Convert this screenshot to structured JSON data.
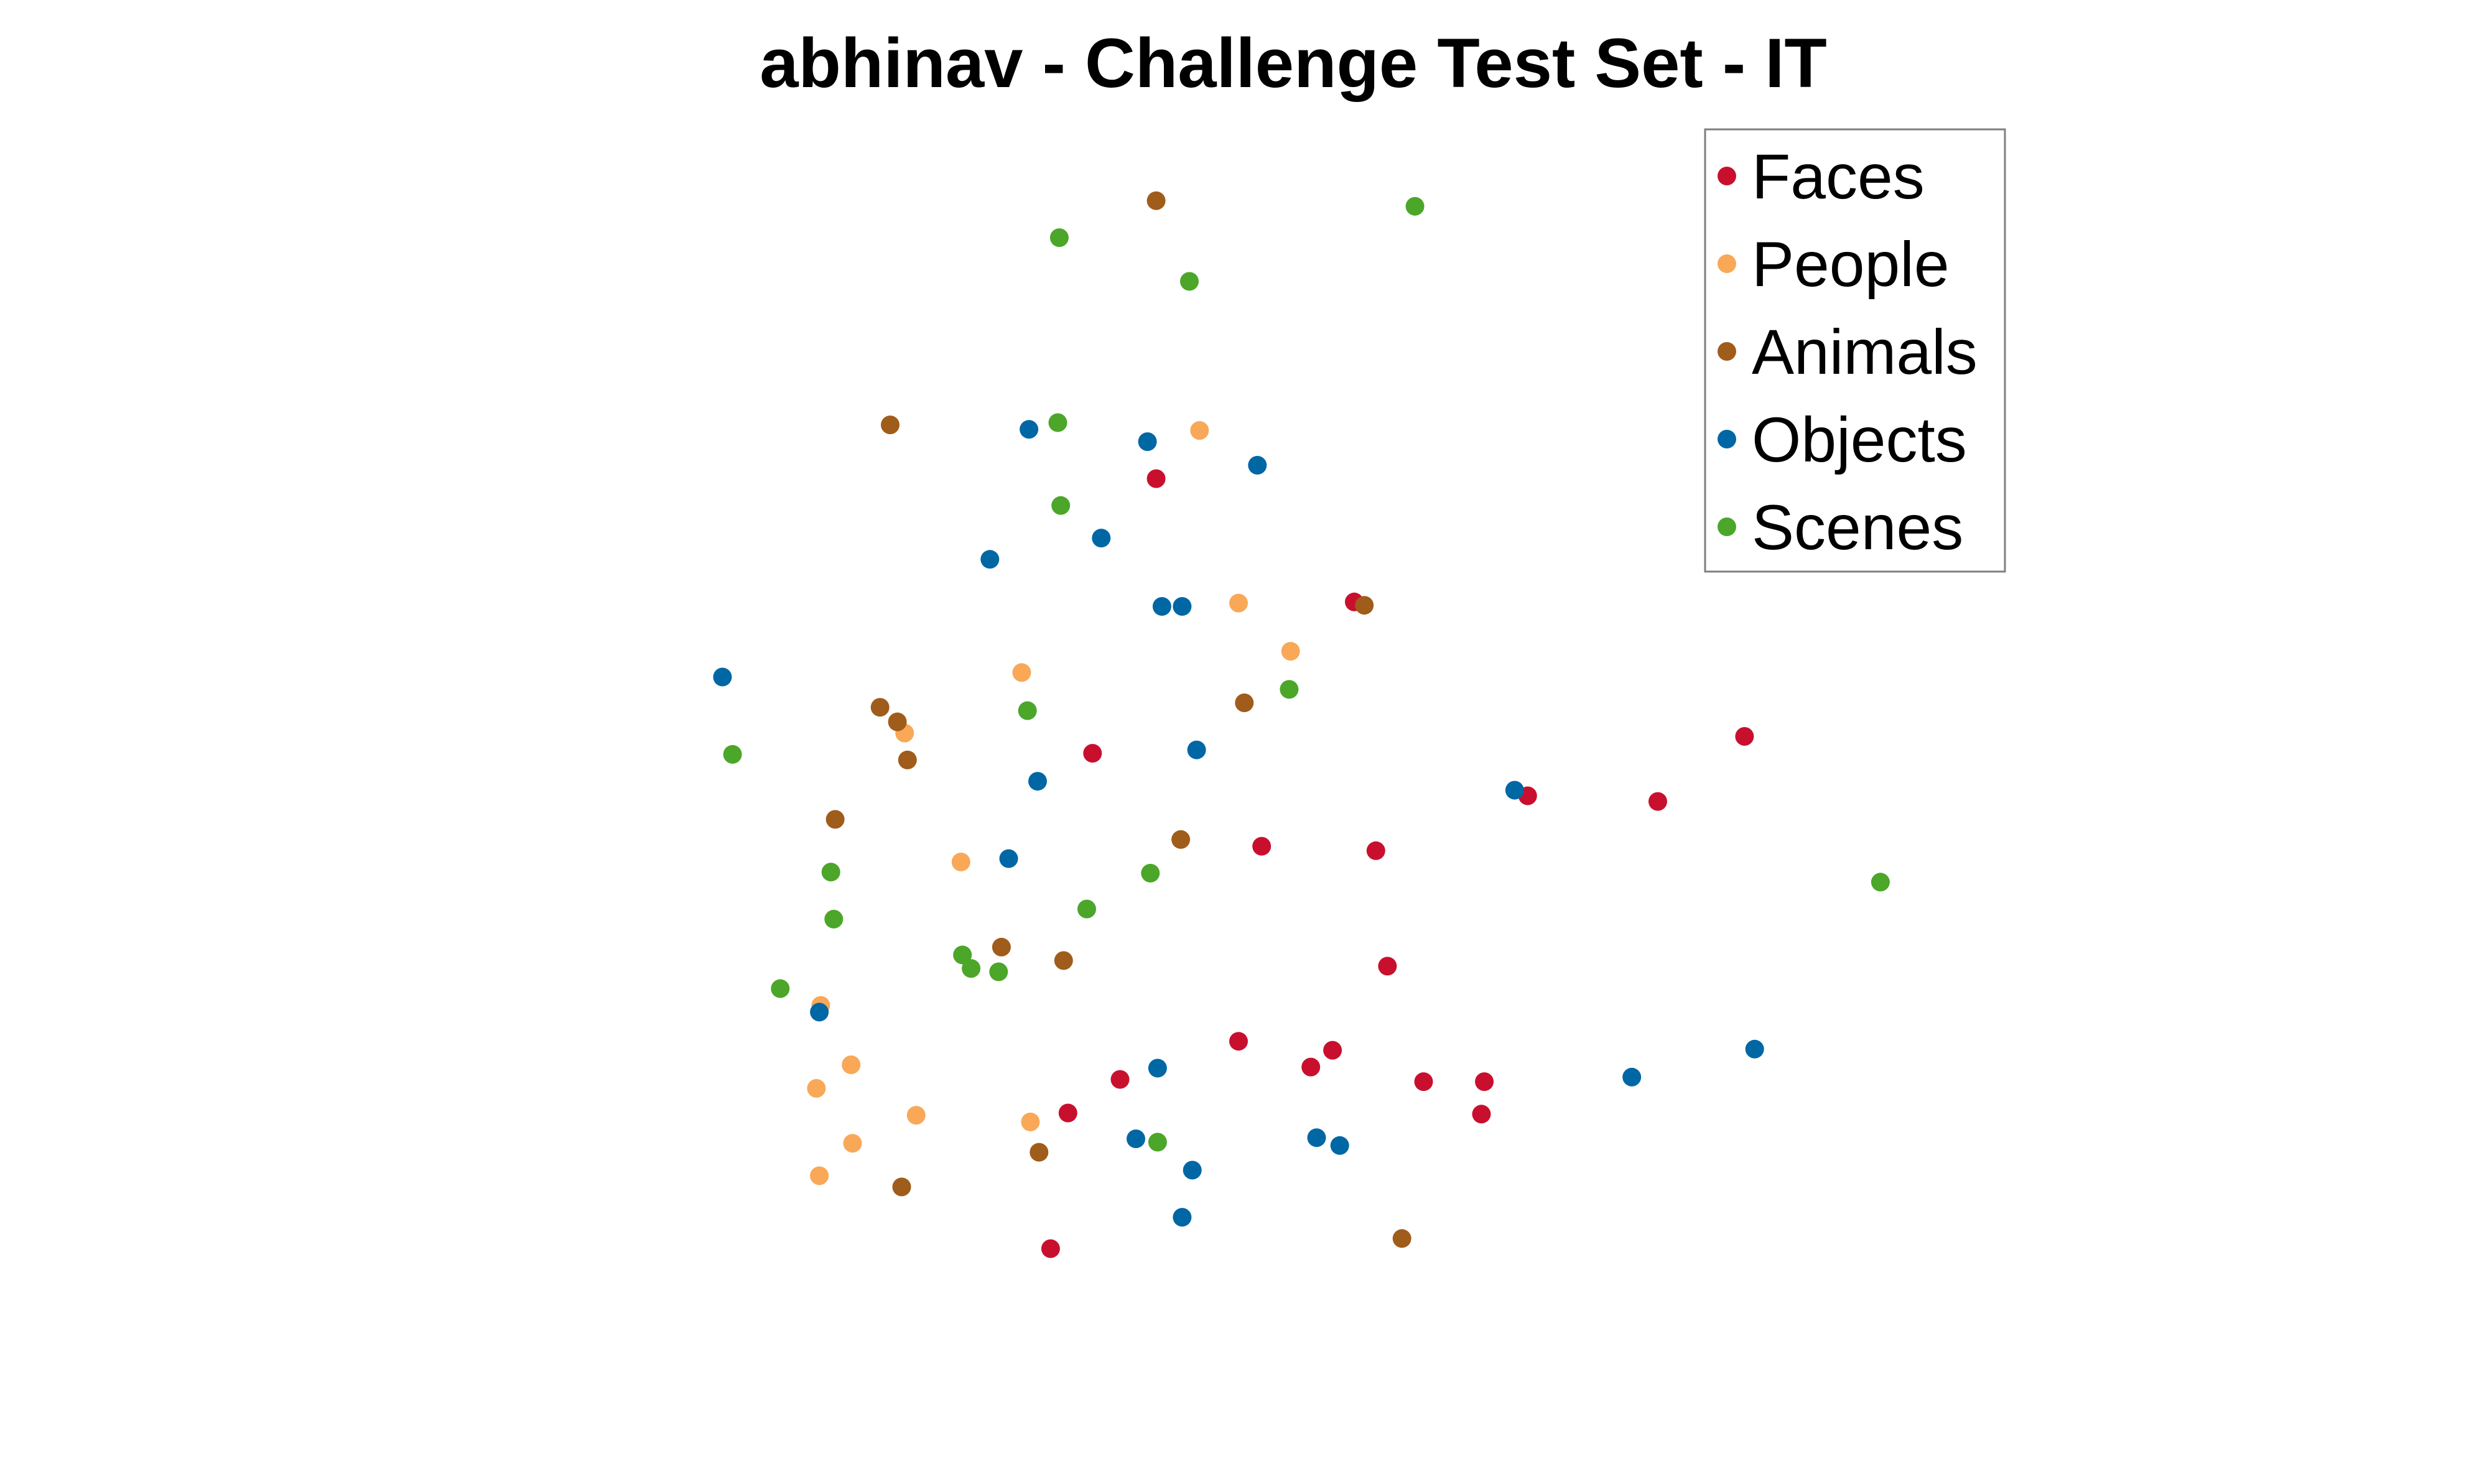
{
  "chart_data": {
    "type": "scatter",
    "title": "abhinav - Challenge Test Set - IT",
    "xlabel": "",
    "ylabel": "",
    "axes_visible": false,
    "grid": false,
    "xlim": [
      0,
      100
    ],
    "ylim": [
      0,
      100
    ],
    "legend_position": "top-right",
    "series": [
      {
        "name": "Faces",
        "color": "#c8102e",
        "points": [
          [
            40.3,
            71.0
          ],
          [
            54.0,
            60.0
          ],
          [
            35.9,
            46.5
          ],
          [
            47.6,
            38.2
          ],
          [
            55.5,
            37.8
          ],
          [
            75.0,
            42.2
          ],
          [
            81.0,
            48.0
          ],
          [
            66.0,
            42.7
          ],
          [
            56.3,
            27.5
          ],
          [
            46.0,
            20.8
          ],
          [
            52.5,
            20.0
          ],
          [
            51.0,
            18.5
          ],
          [
            37.8,
            17.4
          ],
          [
            58.8,
            17.2
          ],
          [
            63.0,
            17.2
          ],
          [
            34.2,
            14.4
          ],
          [
            62.8,
            14.3
          ],
          [
            33.0,
            2.3
          ]
        ]
      },
      {
        "name": "People",
        "color": "#f9a857",
        "points": [
          [
            43.3,
            75.3
          ],
          [
            46.0,
            59.9
          ],
          [
            49.6,
            55.6
          ],
          [
            31.0,
            53.7
          ],
          [
            22.9,
            48.3
          ],
          [
            26.8,
            36.8
          ],
          [
            17.1,
            24.0
          ],
          [
            19.2,
            18.7
          ],
          [
            16.8,
            16.6
          ],
          [
            23.7,
            14.2
          ],
          [
            31.6,
            13.6
          ],
          [
            19.3,
            11.7
          ],
          [
            17.0,
            8.8
          ]
        ]
      },
      {
        "name": "Animals",
        "color": "#a05c1b",
        "points": [
          [
            40.3,
            95.8
          ],
          [
            21.9,
            75.8
          ],
          [
            54.7,
            59.7
          ],
          [
            46.4,
            51.0
          ],
          [
            21.2,
            50.6
          ],
          [
            22.4,
            49.3
          ],
          [
            23.1,
            45.9
          ],
          [
            18.1,
            40.6
          ],
          [
            42.0,
            38.8
          ],
          [
            29.6,
            29.2
          ],
          [
            33.9,
            28.0
          ],
          [
            32.2,
            10.9
          ],
          [
            22.7,
            7.8
          ],
          [
            57.3,
            3.2
          ]
        ]
      },
      {
        "name": "Objects",
        "color": "#0067a5",
        "points": [
          [
            31.5,
            75.4
          ],
          [
            39.7,
            74.3
          ],
          [
            47.3,
            72.2
          ],
          [
            36.5,
            65.7
          ],
          [
            28.8,
            63.8
          ],
          [
            40.7,
            59.6
          ],
          [
            42.1,
            59.6
          ],
          [
            10.3,
            53.3
          ],
          [
            43.1,
            46.8
          ],
          [
            32.1,
            44.0
          ],
          [
            65.1,
            43.2
          ],
          [
            30.1,
            37.1
          ],
          [
            81.7,
            20.1
          ],
          [
            17.0,
            23.4
          ],
          [
            73.2,
            17.6
          ],
          [
            40.4,
            18.4
          ],
          [
            38.9,
            12.1
          ],
          [
            42.8,
            9.3
          ],
          [
            42.1,
            5.1
          ],
          [
            53.0,
            11.5
          ],
          [
            51.4,
            12.2
          ]
        ]
      },
      {
        "name": "Scenes",
        "color": "#4ba629",
        "points": [
          [
            33.6,
            92.5
          ],
          [
            42.6,
            88.6
          ],
          [
            58.2,
            95.3
          ],
          [
            33.5,
            76.0
          ],
          [
            33.7,
            68.6
          ],
          [
            49.5,
            52.2
          ],
          [
            31.4,
            50.3
          ],
          [
            11.0,
            46.4
          ],
          [
            17.8,
            35.9
          ],
          [
            39.9,
            35.8
          ],
          [
            90.4,
            35.0
          ],
          [
            35.5,
            32.6
          ],
          [
            18.0,
            31.7
          ],
          [
            26.9,
            28.5
          ],
          [
            27.5,
            27.3
          ],
          [
            29.4,
            27.0
          ],
          [
            14.3,
            25.5
          ],
          [
            40.4,
            11.8
          ]
        ]
      }
    ]
  }
}
